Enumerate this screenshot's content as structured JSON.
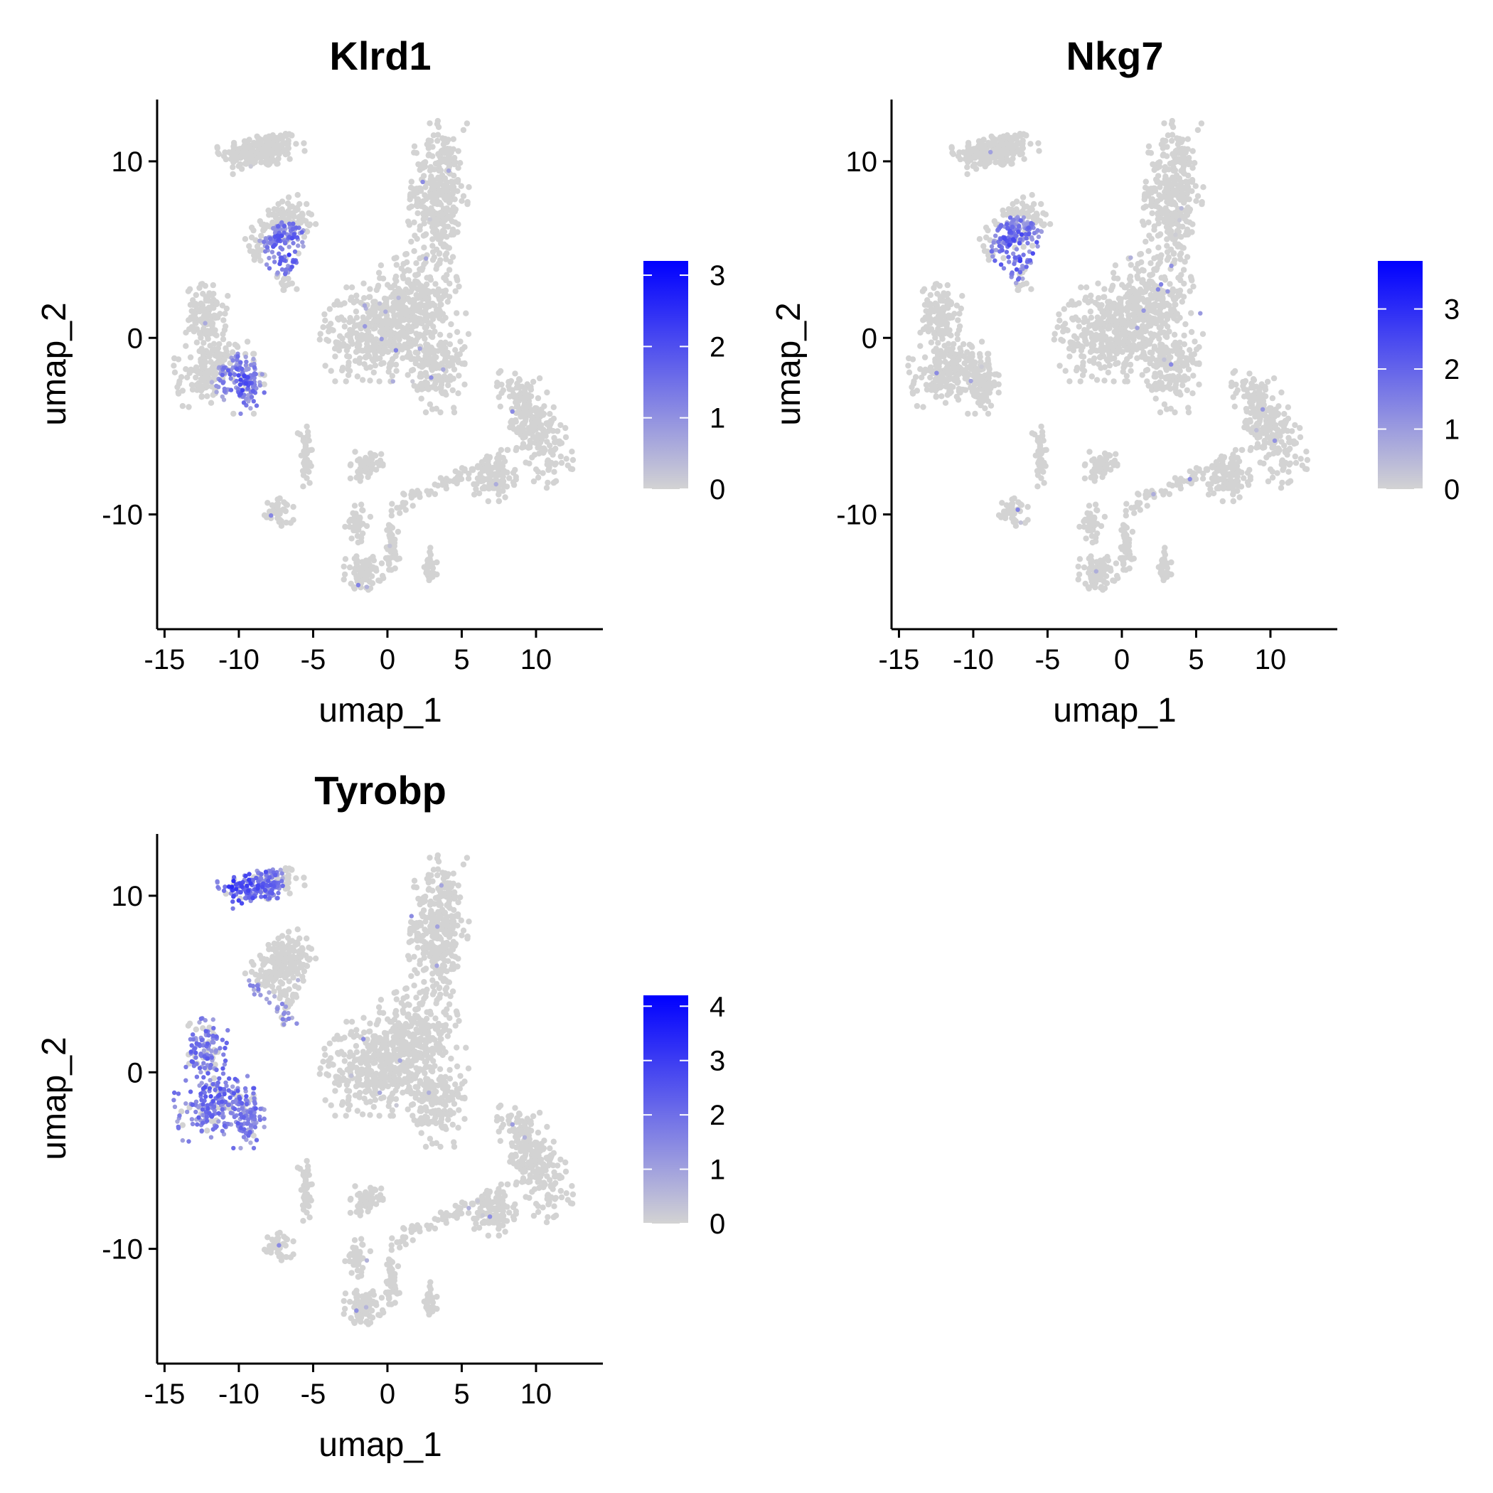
{
  "chart_data": [
    {
      "type": "scatter",
      "title": "Klrd1",
      "xlabel": "umap_1",
      "ylabel": "umap_2",
      "xlim": [
        -15.5,
        14.5
      ],
      "ylim": [
        -16.5,
        13.5
      ],
      "x_ticks": [
        -15,
        -10,
        -5,
        0,
        5,
        10
      ],
      "y_ticks": [
        -10,
        0,
        10
      ],
      "colorbar": {
        "min": 0,
        "max": 3.2,
        "ticks": [
          0,
          1,
          2,
          3
        ],
        "low_color": "#d3d3d3",
        "high_color": "#0000ff"
      },
      "hotspots": [
        {
          "cx": -6.8,
          "cy": 5.0,
          "r": 1.6,
          "max": 2.6
        },
        {
          "cx": -9.8,
          "cy": -2.6,
          "r": 1.8,
          "max": 2.4
        }
      ],
      "grid": false,
      "legend": "right"
    },
    {
      "type": "scatter",
      "title": "Nkg7",
      "xlabel": "umap_1",
      "ylabel": "umap_2",
      "xlim": [
        -15.5,
        14.5
      ],
      "ylim": [
        -16.5,
        13.5
      ],
      "x_ticks": [
        -15,
        -10,
        -5,
        0,
        5,
        10
      ],
      "y_ticks": [
        -10,
        0,
        10
      ],
      "colorbar": {
        "min": 0,
        "max": 3.8,
        "ticks": [
          0,
          1,
          2,
          3
        ],
        "low_color": "#d3d3d3",
        "high_color": "#0000ff"
      },
      "hotspots": [
        {
          "cx": -7.0,
          "cy": 5.0,
          "r": 1.9,
          "max": 3.2
        }
      ],
      "grid": false,
      "legend": "right"
    },
    {
      "type": "scatter",
      "title": "Tyrobp",
      "xlabel": "umap_1",
      "ylabel": "umap_2",
      "xlim": [
        -15.5,
        14.5
      ],
      "ylim": [
        -16.5,
        13.5
      ],
      "x_ticks": [
        -15,
        -10,
        -5,
        0,
        5,
        10
      ],
      "y_ticks": [
        -10,
        0,
        10
      ],
      "colorbar": {
        "min": 0,
        "max": 4.2,
        "ticks": [
          0,
          1,
          2,
          3,
          4
        ],
        "low_color": "#d3d3d3",
        "high_color": "#0000ff"
      },
      "hotspots": [
        {
          "cx": -10.5,
          "cy": 10.7,
          "r": 3.5,
          "max": 3.6
        },
        {
          "cx": -11.0,
          "cy": -0.5,
          "r": 6.0,
          "max": 2.9
        }
      ],
      "grid": false,
      "legend": "right"
    }
  ]
}
